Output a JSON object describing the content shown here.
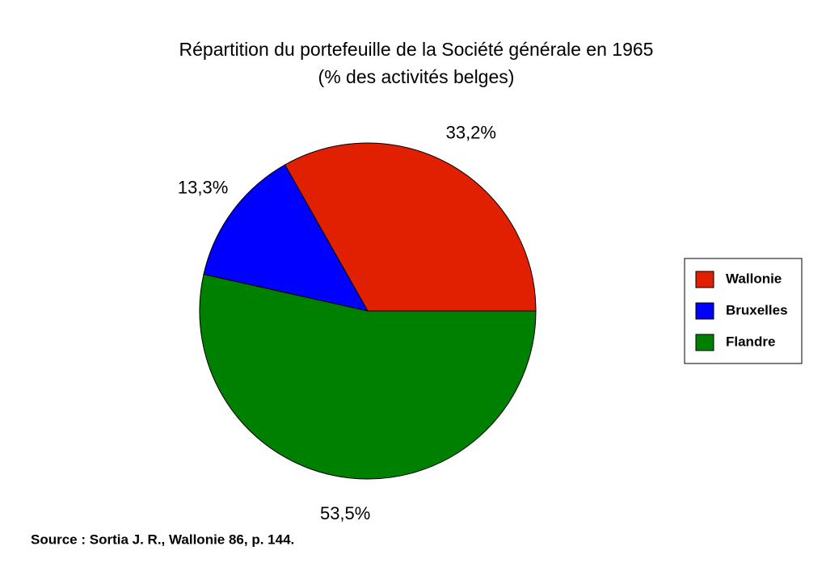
{
  "chart_data": {
    "type": "pie",
    "title": "Répartition du portefeuille de la Société générale en 1965",
    "subtitle": "(% des activités belges)",
    "categories": [
      "Wallonie",
      "Bruxelles",
      "Flandre"
    ],
    "values": [
      33.2,
      13.3,
      53.5
    ],
    "value_labels": [
      "33,2%",
      "13,3%",
      "53,5%"
    ],
    "colors": [
      "#e02000",
      "#0000ff",
      "#008000"
    ],
    "legend": "right",
    "source": "Source : Sortia J. R., Wallonie 86, p. 144."
  }
}
